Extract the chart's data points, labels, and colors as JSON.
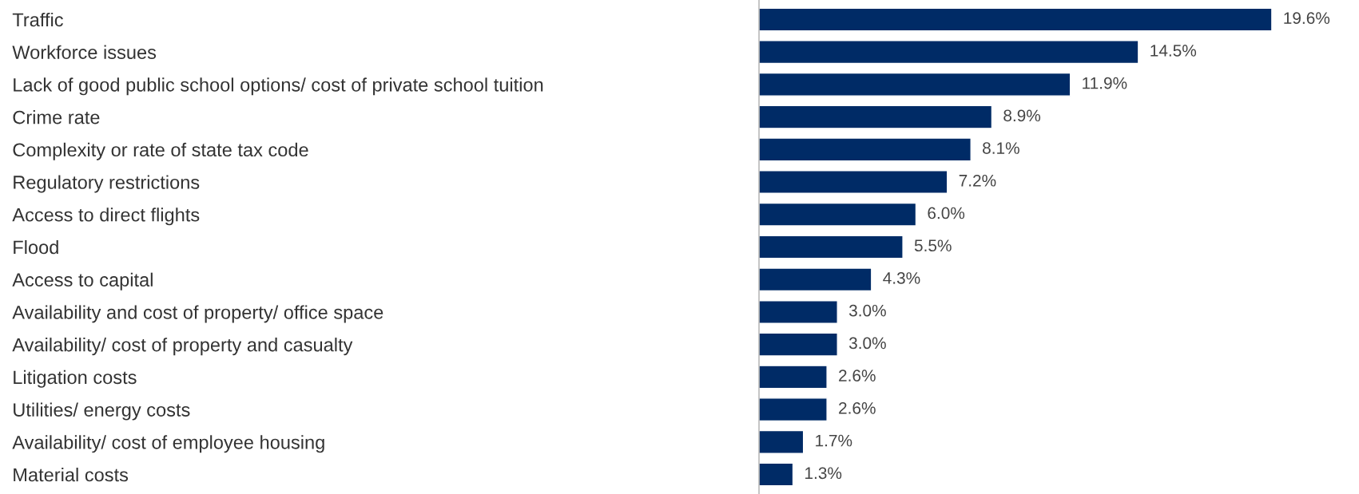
{
  "chart_data": {
    "type": "bar",
    "orientation": "horizontal",
    "categories": [
      "Traffic",
      "Workforce issues",
      "Lack of good public school options/ cost of private school tuition",
      "Crime rate",
      "Complexity or rate of state tax code",
      "Regulatory restrictions",
      "Access to direct flights",
      "Flood",
      "Access to capital",
      "Availability and cost of property/ office space",
      "Availability/ cost of property and casualty",
      "Litigation costs",
      "Utilities/ energy costs",
      "Availability/ cost of employee housing",
      "Material costs"
    ],
    "values": [
      19.6,
      14.5,
      11.9,
      8.9,
      8.1,
      7.2,
      6.0,
      5.5,
      4.3,
      3.0,
      3.0,
      2.6,
      2.6,
      1.7,
      1.3
    ],
    "value_labels": [
      "19.6%",
      "14.5%",
      "11.9%",
      "8.9%",
      "8.1%",
      "7.2%",
      "6.0%",
      "5.5%",
      "4.3%",
      "3.0%",
      "3.0%",
      "2.6%",
      "2.6%",
      "1.7%",
      "1.3%"
    ],
    "color": "#002b66",
    "grid": false,
    "legend": false
  }
}
